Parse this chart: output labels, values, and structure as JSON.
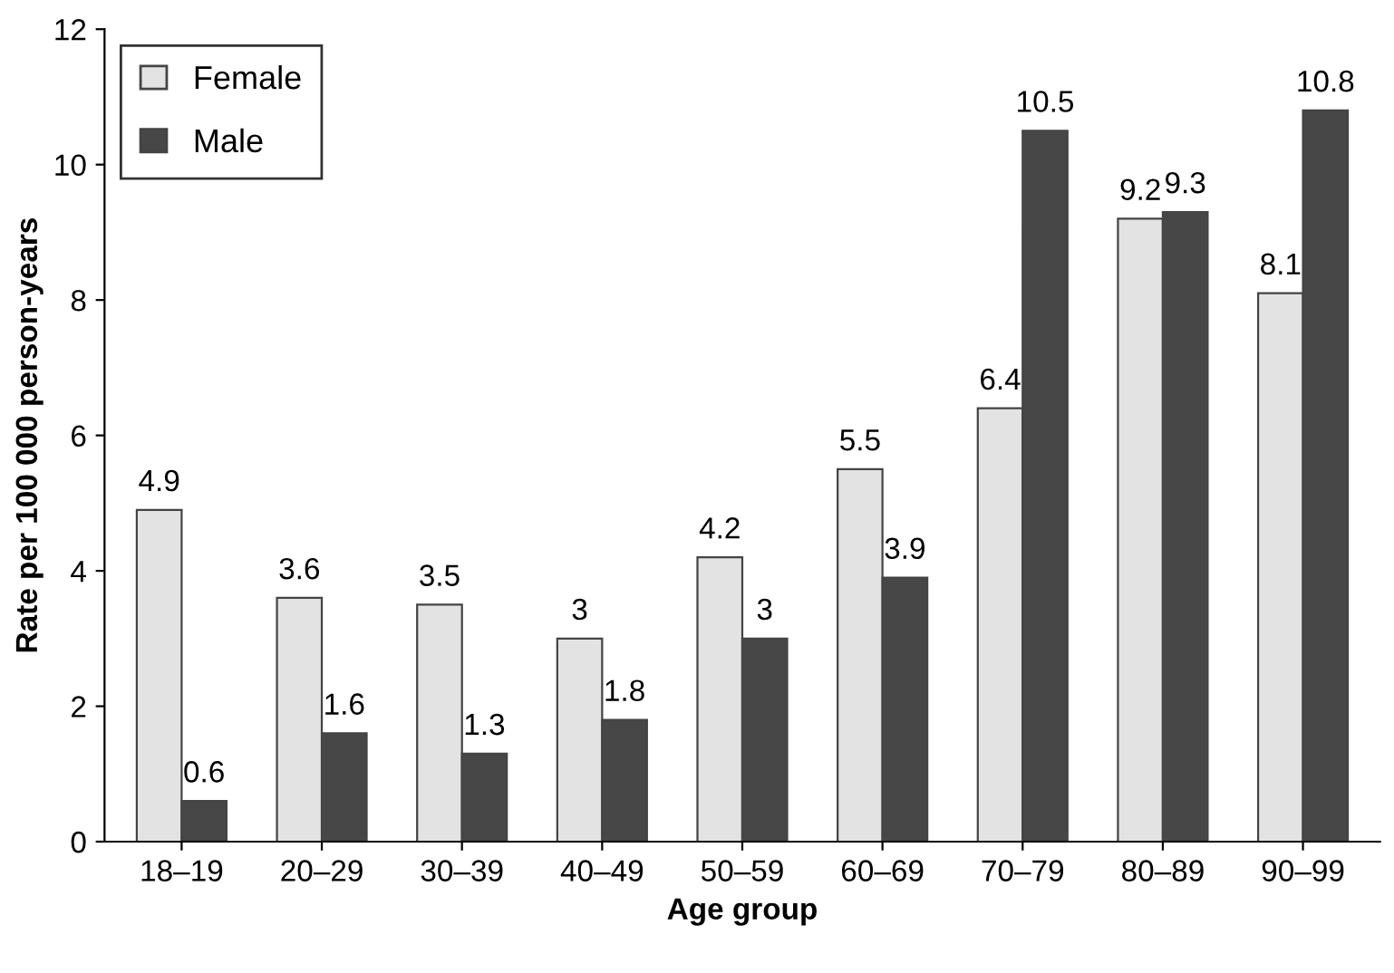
{
  "chart_data": {
    "type": "bar",
    "xlabel": "Age group",
    "ylabel": "Rate per 100 000 person-years",
    "categories": [
      "18–19",
      "20–29",
      "30–39",
      "40–49",
      "50–59",
      "60–69",
      "70–79",
      "80–89",
      "90–99"
    ],
    "series": [
      {
        "name": "Female",
        "color": "#e3e3e3",
        "values": [
          4.9,
          3.6,
          3.5,
          3,
          4.2,
          5.5,
          6.4,
          9.2,
          8.1
        ]
      },
      {
        "name": "Male",
        "color": "#474747",
        "values": [
          0.6,
          1.6,
          1.3,
          1.8,
          3,
          3.9,
          10.5,
          9.3,
          10.8
        ]
      }
    ],
    "ylim": [
      0,
      12
    ],
    "yticks": [
      0,
      2,
      4,
      6,
      8,
      10,
      12
    ],
    "data_labels": true,
    "legend": "top left",
    "grid": false
  }
}
